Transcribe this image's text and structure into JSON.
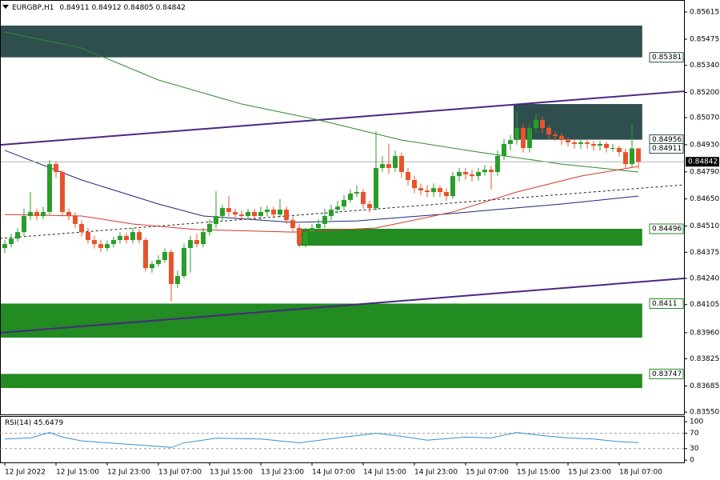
{
  "chart_data": {
    "type": "candlestick",
    "symbol": "EURGBP,H1",
    "xlim": [
      -0.75,
      106.125
    ],
    "ylim": [
      0.83538,
      0.85677
    ],
    "yticks": [
      0.85615,
      0.85475,
      {
        "value": 0.8534,
        "label": "0.85340"
      },
      {
        "value": 0.852,
        "label": "0.85200"
      },
      {
        "value": 0.8507,
        "label": "0.85070"
      },
      {
        "value": 0.8493,
        "label": "0.84930"
      },
      {
        "value": 0.8479,
        "label": "0.84790"
      },
      {
        "value": 0.8465,
        "label": "0.84650"
      },
      {
        "value": 0.8451,
        "label": "0.84510"
      },
      0.84375,
      {
        "value": 0.8424,
        "label": "0.84240"
      },
      0.84105,
      {
        "value": 0.8396,
        "label": "0.83960"
      },
      0.83825,
      0.83685,
      {
        "value": 0.8355,
        "label": "0.83550"
      }
    ],
    "xticks": [
      {
        "value": 0,
        "label": "12 Jul 2022"
      },
      {
        "value": 8,
        "label": "12 Jul 15:00"
      },
      {
        "value": 16,
        "label": "12 Jul 23:00"
      },
      {
        "value": 24,
        "label": "13 Jul 07:00"
      },
      {
        "value": 32,
        "label": "13 Jul 15:00"
      },
      {
        "value": 40,
        "label": "13 Jul 23:00"
      },
      {
        "value": 48,
        "label": "14 Jul 07:00"
      },
      {
        "value": 56,
        "label": "14 Jul 15:00"
      },
      {
        "value": 64,
        "label": "14 Jul 23:00"
      },
      {
        "value": 72,
        "label": "15 Jul 07:00"
      },
      {
        "value": 80,
        "label": "15 Jul 15:00"
      },
      {
        "value": 88,
        "label": "15 Jul 23:00"
      },
      {
        "value": 96,
        "label": "18 Jul 07:00"
      }
    ],
    "up_color": "#2a9d2a",
    "down_color": "#e8532b",
    "open": [
      0.84397,
      0.84417,
      0.84446,
      0.84479,
      0.84562,
      0.84583,
      0.84562,
      0.84583,
      0.8483,
      0.84789,
      0.84583,
      0.84562,
      0.84521,
      0.84479,
      0.84438,
      0.84417,
      0.84397,
      0.84417,
      0.84438,
      0.84459,
      0.84438,
      0.84479,
      0.84438,
      0.84293,
      0.84314,
      0.84335,
      0.84376,
      0.84211,
      0.84252,
      0.84397,
      0.84438,
      0.84417,
      0.84479,
      0.84521,
      0.84562,
      0.84603,
      0.84583,
      0.8457,
      0.84562,
      0.84583,
      0.84562,
      0.84583,
      0.84595,
      0.8457,
      0.84595,
      0.84541,
      0.845,
      0.84417,
      0.84479,
      0.845,
      0.84521,
      0.84562,
      0.84595,
      0.84611,
      0.84645,
      0.84678,
      0.84686,
      0.84624,
      0.84603,
      0.8481,
      0.8483,
      0.8481,
      0.84872,
      0.84789,
      0.84748,
      0.84706,
      0.84694,
      0.84686,
      0.84706,
      0.84686,
      0.84665,
      0.84768,
      0.84789,
      0.84777,
      0.84768,
      0.84789,
      0.84801,
      0.84789,
      0.84872,
      0.84934,
      0.84954,
      0.85016,
      0.84913,
      0.85016,
      0.85058,
      0.85016,
      0.84983,
      0.84975,
      0.84954,
      0.84942,
      0.84934,
      0.84942,
      0.84934,
      0.84925,
      0.84934,
      0.84913,
      0.84913,
      0.84892,
      0.8483,
      0.84911
    ],
    "high": [
      0.8444,
      0.8447,
      0.845,
      0.846,
      0.84686,
      0.846,
      0.8461,
      0.8485,
      0.84845,
      0.848,
      0.846,
      0.8458,
      0.8454,
      0.845,
      0.8446,
      0.8444,
      0.84435,
      0.84455,
      0.8448,
      0.84475,
      0.845,
      0.84495,
      0.8445,
      0.8433,
      0.8436,
      0.84395,
      0.8439,
      0.8428,
      0.8442,
      0.8446,
      0.8447,
      0.845,
      0.84545,
      0.8469,
      0.8462,
      0.84665,
      0.846,
      0.8459,
      0.846,
      0.846,
      0.8461,
      0.84615,
      0.8461,
      0.8465,
      0.8461,
      0.8456,
      0.8452,
      0.845,
      0.8452,
      0.84545,
      0.846,
      0.8462,
      0.8464,
      0.8467,
      0.847,
      0.8472,
      0.847,
      0.8464,
      0.85,
      0.8487,
      0.84934,
      0.849,
      0.8489,
      0.8481,
      0.8477,
      0.8473,
      0.8472,
      0.8473,
      0.8472,
      0.84705,
      0.8479,
      0.8481,
      0.8481,
      0.848,
      0.8481,
      0.84825,
      0.8482,
      0.849,
      0.8496,
      0.8498,
      0.851,
      0.8504,
      0.8504,
      0.8509,
      0.85075,
      0.8503,
      0.85,
      0.8499,
      0.8497,
      0.8496,
      0.8496,
      0.84955,
      0.8495,
      0.8495,
      0.84945,
      0.84935,
      0.84925,
      0.8491,
      0.85037,
      0.84912
    ],
    "low": [
      0.8437,
      0.844,
      0.8443,
      0.8446,
      0.8454,
      0.8454,
      0.84545,
      0.8457,
      0.8476,
      0.8456,
      0.8454,
      0.845,
      0.84455,
      0.8442,
      0.84395,
      0.84375,
      0.8438,
      0.844,
      0.8442,
      0.8442,
      0.8442,
      0.8442,
      0.84275,
      0.8427,
      0.843,
      0.8432,
      0.8412,
      0.8419,
      0.8424,
      0.8427,
      0.844,
      0.844,
      0.8446,
      0.845,
      0.8454,
      0.8456,
      0.8455,
      0.8454,
      0.84545,
      0.84545,
      0.84545,
      0.8456,
      0.8455,
      0.84555,
      0.8452,
      0.8448,
      0.844,
      0.844,
      0.8446,
      0.8448,
      0.845,
      0.8454,
      0.84575,
      0.8459,
      0.8463,
      0.8466,
      0.846,
      0.8458,
      0.8459,
      0.8479,
      0.8478,
      0.8479,
      0.8476,
      0.8472,
      0.8468,
      0.8467,
      0.8466,
      0.8466,
      0.8466,
      0.8464,
      0.8465,
      0.8474,
      0.8475,
      0.8474,
      0.84745,
      0.8477,
      0.847,
      0.8477,
      0.8485,
      0.849,
      0.8493,
      0.8489,
      0.8489,
      0.8499,
      0.8499,
      0.8496,
      0.8495,
      0.8493,
      0.8492,
      0.8491,
      0.8491,
      0.8491,
      0.849,
      0.849,
      0.8489,
      0.84895,
      0.8487,
      0.8481,
      0.84815,
      0.84805
    ],
    "close": [
      0.84417,
      0.84446,
      0.84479,
      0.84562,
      0.84583,
      0.84562,
      0.84583,
      0.8483,
      0.84789,
      0.84583,
      0.84562,
      0.84521,
      0.84479,
      0.84438,
      0.84417,
      0.84397,
      0.84417,
      0.84438,
      0.84459,
      0.84438,
      0.84479,
      0.84438,
      0.84293,
      0.84314,
      0.84335,
      0.84376,
      0.84211,
      0.84252,
      0.84397,
      0.84438,
      0.84417,
      0.84479,
      0.84521,
      0.84562,
      0.84603,
      0.84583,
      0.8457,
      0.84562,
      0.84583,
      0.84562,
      0.84583,
      0.84595,
      0.8457,
      0.84595,
      0.84541,
      0.845,
      0.84417,
      0.84479,
      0.845,
      0.84521,
      0.84562,
      0.84595,
      0.84611,
      0.84645,
      0.84678,
      0.84686,
      0.84624,
      0.84603,
      0.8481,
      0.8483,
      0.8481,
      0.84872,
      0.84789,
      0.84748,
      0.84706,
      0.84694,
      0.84686,
      0.84706,
      0.84686,
      0.84665,
      0.84768,
      0.84789,
      0.84777,
      0.84768,
      0.84789,
      0.84801,
      0.84789,
      0.84872,
      0.84934,
      0.84954,
      0.85016,
      0.84913,
      0.85016,
      0.85058,
      0.85016,
      0.84983,
      0.84975,
      0.84954,
      0.84942,
      0.84934,
      0.84942,
      0.84934,
      0.84925,
      0.84934,
      0.84913,
      0.84913,
      0.84892,
      0.8483,
      0.84911,
      0.84842
    ],
    "zones": [
      {
        "color": "#2f4f4f",
        "x": [
          -0.75,
          99.6
        ],
        "top": 0.85545,
        "bottom": 0.85381,
        "label_at": "bottom"
      },
      {
        "color": "#2f4f4f",
        "x": [
          79.5,
          99.6
        ],
        "top": 0.8514,
        "bottom": 0.84956,
        "label_at": "bottom"
      },
      {
        "color": "#228b22",
        "x": [
          45.75,
          99.6
        ],
        "top": 0.84496,
        "bottom": 0.84409,
        "label_at": "top"
      },
      {
        "color": "#228b22",
        "x": [
          -0.75,
          99.6
        ],
        "top": 0.8411,
        "bottom": 0.83934,
        "label_at": "top"
      },
      {
        "color": "#228b22",
        "x": [
          -0.75,
          99.6
        ],
        "top": 0.83747,
        "bottom": 0.83674,
        "label_at": "top"
      }
    ],
    "trend_lines": [
      {
        "color": "#4b2882",
        "dashed": false,
        "x": [
          -0.75,
          106.125
        ],
        "values": [
          0.84929,
          0.85206
        ]
      },
      {
        "color": "#4b2882",
        "dashed": false,
        "x": [
          -0.75,
          106.125
        ],
        "values": [
          0.83959,
          0.8424
        ]
      },
      {
        "color": "#222222",
        "dashed": true,
        "x": [
          -0.75,
          106.125
        ],
        "values": [
          0.84446,
          0.84723
        ]
      }
    ],
    "moving_averages": [
      {
        "color": "#2e8b2e",
        "x": [
          0,
          12,
          24,
          37,
          49,
          62,
          74,
          87,
          99
        ],
        "values": [
          0.85512,
          0.85429,
          0.85264,
          0.8514,
          0.85058,
          0.84954,
          0.84892,
          0.8483,
          0.84789
        ]
      },
      {
        "color": "#1c2a7a",
        "x": [
          0,
          12,
          24,
          31,
          45,
          55,
          68,
          87,
          99
        ],
        "values": [
          0.84901,
          0.84748,
          0.84624,
          0.84562,
          0.84529,
          0.84537,
          0.8457,
          0.84624,
          0.84665
        ]
      },
      {
        "color": "#d43a2a",
        "x": [
          0,
          12,
          20,
          30,
          45,
          58,
          70,
          80,
          90,
          99
        ],
        "values": [
          0.8457,
          0.84562,
          0.84521,
          0.84492,
          0.84479,
          0.845,
          0.84583,
          0.84686,
          0.84768,
          0.84818
        ]
      }
    ],
    "marker_price": 0.84911,
    "last_price": 0.84842,
    "rsi": {
      "label": "RSI(14)",
      "color": "#3a8fd0",
      "ylim": [
        -6,
        115
      ],
      "yticks": [
        100,
        70,
        30,
        0
      ],
      "levels": [
        70,
        30
      ],
      "x": [
        0,
        4,
        7,
        9,
        12,
        16,
        22,
        26,
        28,
        33,
        40,
        46,
        52,
        58,
        62,
        66,
        72,
        76,
        80,
        84,
        88,
        92,
        96,
        99
      ],
      "values": [
        55,
        58,
        72,
        60,
        50,
        45,
        38,
        33,
        45,
        57,
        55,
        45,
        58,
        70,
        62,
        52,
        60,
        58,
        72,
        64,
        58,
        55,
        48,
        45.6479
      ]
    }
  }
}
